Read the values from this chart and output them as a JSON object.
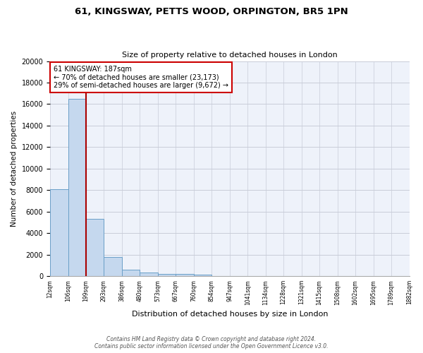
{
  "title1": "61, KINGSWAY, PETTS WOOD, ORPINGTON, BR5 1PN",
  "title2": "Size of property relative to detached houses in London",
  "xlabel": "Distribution of detached houses by size in London",
  "ylabel": "Number of detached properties",
  "annotation_line1": "61 KINGSWAY: 187sqm",
  "annotation_line2": "← 70% of detached houses are smaller (23,173)",
  "annotation_line3": "29% of semi-detached houses are larger (9,672) →",
  "footer1": "Contains HM Land Registry data © Crown copyright and database right 2024.",
  "footer2": "Contains public sector information licensed under the Open Government Licence v3.0.",
  "bar_values": [
    8100,
    16500,
    5300,
    1800,
    600,
    330,
    220,
    180,
    150,
    0,
    0,
    0,
    0,
    0,
    0,
    0,
    0,
    0,
    0,
    0
  ],
  "bin_labels": [
    "12sqm",
    "106sqm",
    "199sqm",
    "293sqm",
    "386sqm",
    "480sqm",
    "573sqm",
    "667sqm",
    "760sqm",
    "854sqm",
    "947sqm",
    "1041sqm",
    "1134sqm",
    "1228sqm",
    "1321sqm",
    "1415sqm",
    "1508sqm",
    "1602sqm",
    "1695sqm",
    "1789sqm",
    "1882sqm"
  ],
  "bar_color": "#c5d8ee",
  "bar_edge_color": "#6a9fc8",
  "vline_color": "#aa0000",
  "annotation_box_color": "#cc0000",
  "background_color": "#eef2fa",
  "ylim": [
    0,
    20000
  ],
  "yticks": [
    0,
    2000,
    4000,
    6000,
    8000,
    10000,
    12000,
    14000,
    16000,
    18000,
    20000
  ],
  "grid_color": "#c8ccd8"
}
